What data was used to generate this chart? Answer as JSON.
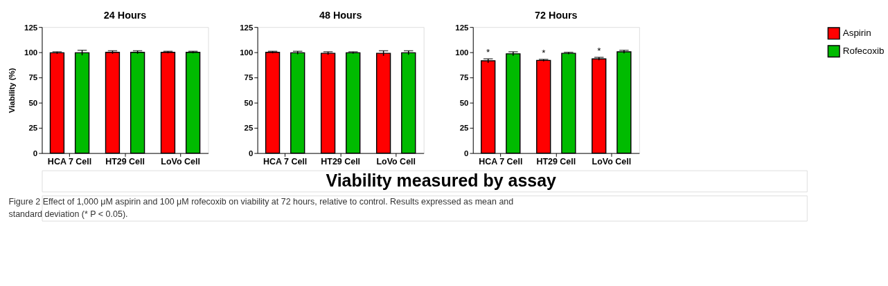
{
  "chart_data": [
    {
      "type": "bar",
      "title": "24 Hours",
      "ylabel": "Viability (%)",
      "categories": [
        "HCA 7 Cell",
        "HT29 Cell",
        "LoVo Cell"
      ],
      "ylim": [
        0,
        125
      ],
      "yticks": [
        0,
        25,
        50,
        75,
        100,
        125
      ],
      "grid": false,
      "legend": "right",
      "series": [
        {
          "name": "Aspirin",
          "color": "#ff0000",
          "values": [
            99.5,
            100,
            100
          ],
          "errors": [
            1,
            1.5,
            1
          ]
        },
        {
          "name": "Rofecoxib",
          "color": "#00bb00",
          "values": [
            99.5,
            100,
            100
          ],
          "errors": [
            2.5,
            1.5,
            1
          ]
        }
      ],
      "annotations": [
        "Viability measured by assay",
        "Figure 2 Effect of 1,000 μM aspirin and 100 μM rofecoxib on viability at 72 hours, relative to control. Results expressed as mean and",
        "standard deviation (* P < 0.05)."
      ]
    },
    {
      "type": "bar",
      "title": "48 Hours",
      "categories": [
        "HCA 7 Cell",
        "HT29 Cell",
        "LoVo Cell"
      ],
      "ylim": [
        0,
        125
      ],
      "yticks": [
        0,
        25,
        50,
        75,
        100,
        125
      ],
      "legend": "right",
      "series": [
        {
          "name": "Aspirin",
          "color": "#ff0000",
          "values": [
            100,
            99,
            99
          ],
          "errors": [
            1,
            1.5,
            2.5
          ]
        },
        {
          "name": "Rofecoxib",
          "color": "#00bb00",
          "values": [
            99.5,
            99.5,
            99.5
          ],
          "errors": [
            1.5,
            1,
            2
          ]
        }
      ]
    },
    {
      "type": "bar",
      "title": "72 Hours",
      "categories": [
        "HCA 7 Cell",
        "HT29 Cell",
        "LoVo Cell"
      ],
      "ylim": [
        0,
        125
      ],
      "yticks": [
        0,
        25,
        50,
        75,
        100,
        125
      ],
      "legend": "right",
      "series": [
        {
          "name": "Aspirin",
          "color": "#ff0000",
          "values": [
            91.5,
            92,
            93.5
          ],
          "errors": [
            2,
            1,
            1.5
          ]
        },
        {
          "name": "Rofecoxib",
          "color": "#00bb00",
          "values": [
            98.5,
            99,
            100.5
          ],
          "errors": [
            2,
            1,
            1.5
          ]
        }
      ],
      "annotations": [
        "*",
        "*",
        "*"
      ]
    }
  ]
}
